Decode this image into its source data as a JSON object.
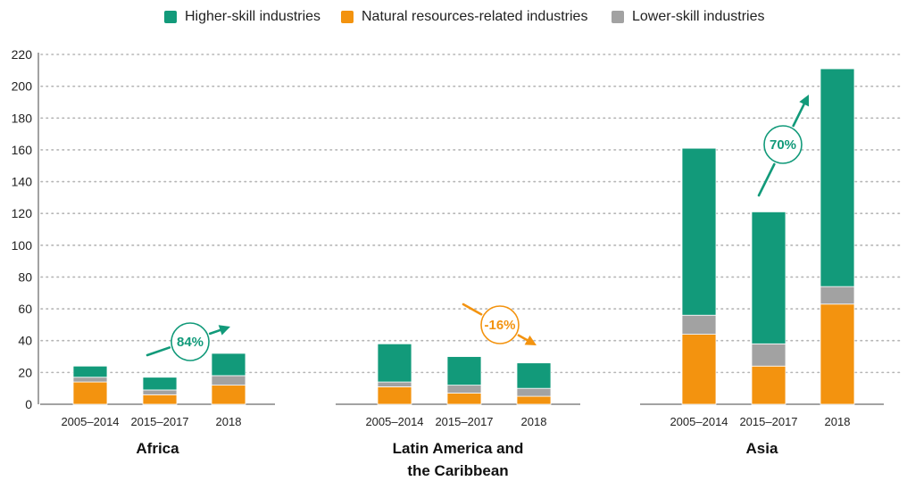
{
  "legend": [
    {
      "label": "Higher-skill industries",
      "color": "#129a7a"
    },
    {
      "label": "Natural resources-related industries",
      "color": "#f3930f"
    },
    {
      "label": "Lower-skill industries",
      "color": "#a2a2a2"
    }
  ],
  "chart_data": {
    "type": "bar",
    "stacked": true,
    "ylim": [
      0,
      220
    ],
    "yticks": [
      0,
      20,
      40,
      60,
      80,
      100,
      120,
      140,
      160,
      180,
      200,
      220
    ],
    "grid": "dotted horizontal",
    "legend_position": "top",
    "groups": [
      {
        "name": "Africa",
        "categories": [
          "2005–2014",
          "2015–2017",
          "2018"
        ],
        "series": [
          {
            "name": "Natural resources-related industries",
            "values": [
              14,
              6,
              12
            ]
          },
          {
            "name": "Lower-skill industries",
            "values": [
              3,
              3,
              6
            ]
          },
          {
            "name": "Higher-skill industries",
            "values": [
              7,
              8,
              14
            ]
          }
        ],
        "change": {
          "label": "84%",
          "direction": "up",
          "color": "#129a7a"
        }
      },
      {
        "name": "Latin America and the Caribbean",
        "categories": [
          "2005–2014",
          "2015–2017",
          "2018"
        ],
        "series": [
          {
            "name": "Natural resources-related industries",
            "values": [
              11,
              7,
              5
            ]
          },
          {
            "name": "Lower-skill industries",
            "values": [
              3,
              5,
              5
            ]
          },
          {
            "name": "Higher-skill industries",
            "values": [
              24,
              18,
              16
            ]
          }
        ],
        "change": {
          "label": "-16%",
          "direction": "down",
          "color": "#f3930f"
        }
      },
      {
        "name": "Asia",
        "categories": [
          "2005–2014",
          "2015–2017",
          "2018"
        ],
        "series": [
          {
            "name": "Natural resources-related industries",
            "values": [
              44,
              24,
              63
            ]
          },
          {
            "name": "Lower-skill industries",
            "values": [
              12,
              14,
              11
            ]
          },
          {
            "name": "Higher-skill industries",
            "values": [
              105,
              83,
              137
            ]
          }
        ],
        "change": {
          "label": "70%",
          "direction": "up",
          "color": "#129a7a"
        }
      }
    ]
  }
}
